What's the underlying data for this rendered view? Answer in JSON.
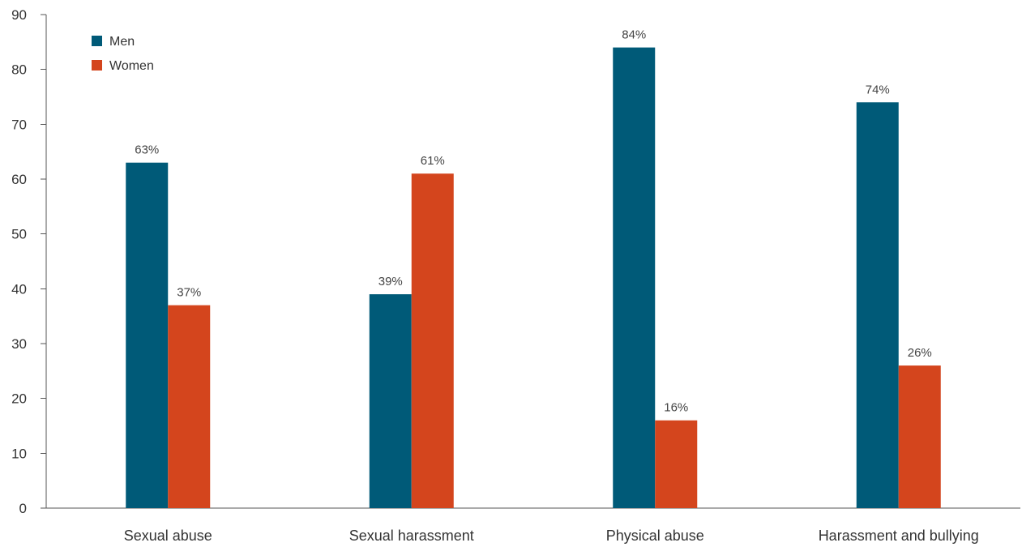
{
  "chart_data": {
    "type": "bar",
    "categories": [
      "Sexual abuse",
      "Sexual harassment",
      "Physical abuse",
      "Harassment and bullying"
    ],
    "series": [
      {
        "name": "Men",
        "values": [
          63,
          39,
          84,
          74
        ],
        "labels": [
          "63%",
          "39%",
          "84%",
          "74%"
        ],
        "color": "#005a78"
      },
      {
        "name": "Women",
        "values": [
          37,
          61,
          16,
          26
        ],
        "labels": [
          "37%",
          "61%",
          "16%",
          "26%"
        ],
        "color": "#d4451d"
      }
    ],
    "ylim": [
      0,
      90
    ],
    "yticks": [
      0,
      10,
      20,
      30,
      40,
      50,
      60,
      70,
      80,
      90
    ],
    "grid": false,
    "legend_position": "top-left"
  }
}
